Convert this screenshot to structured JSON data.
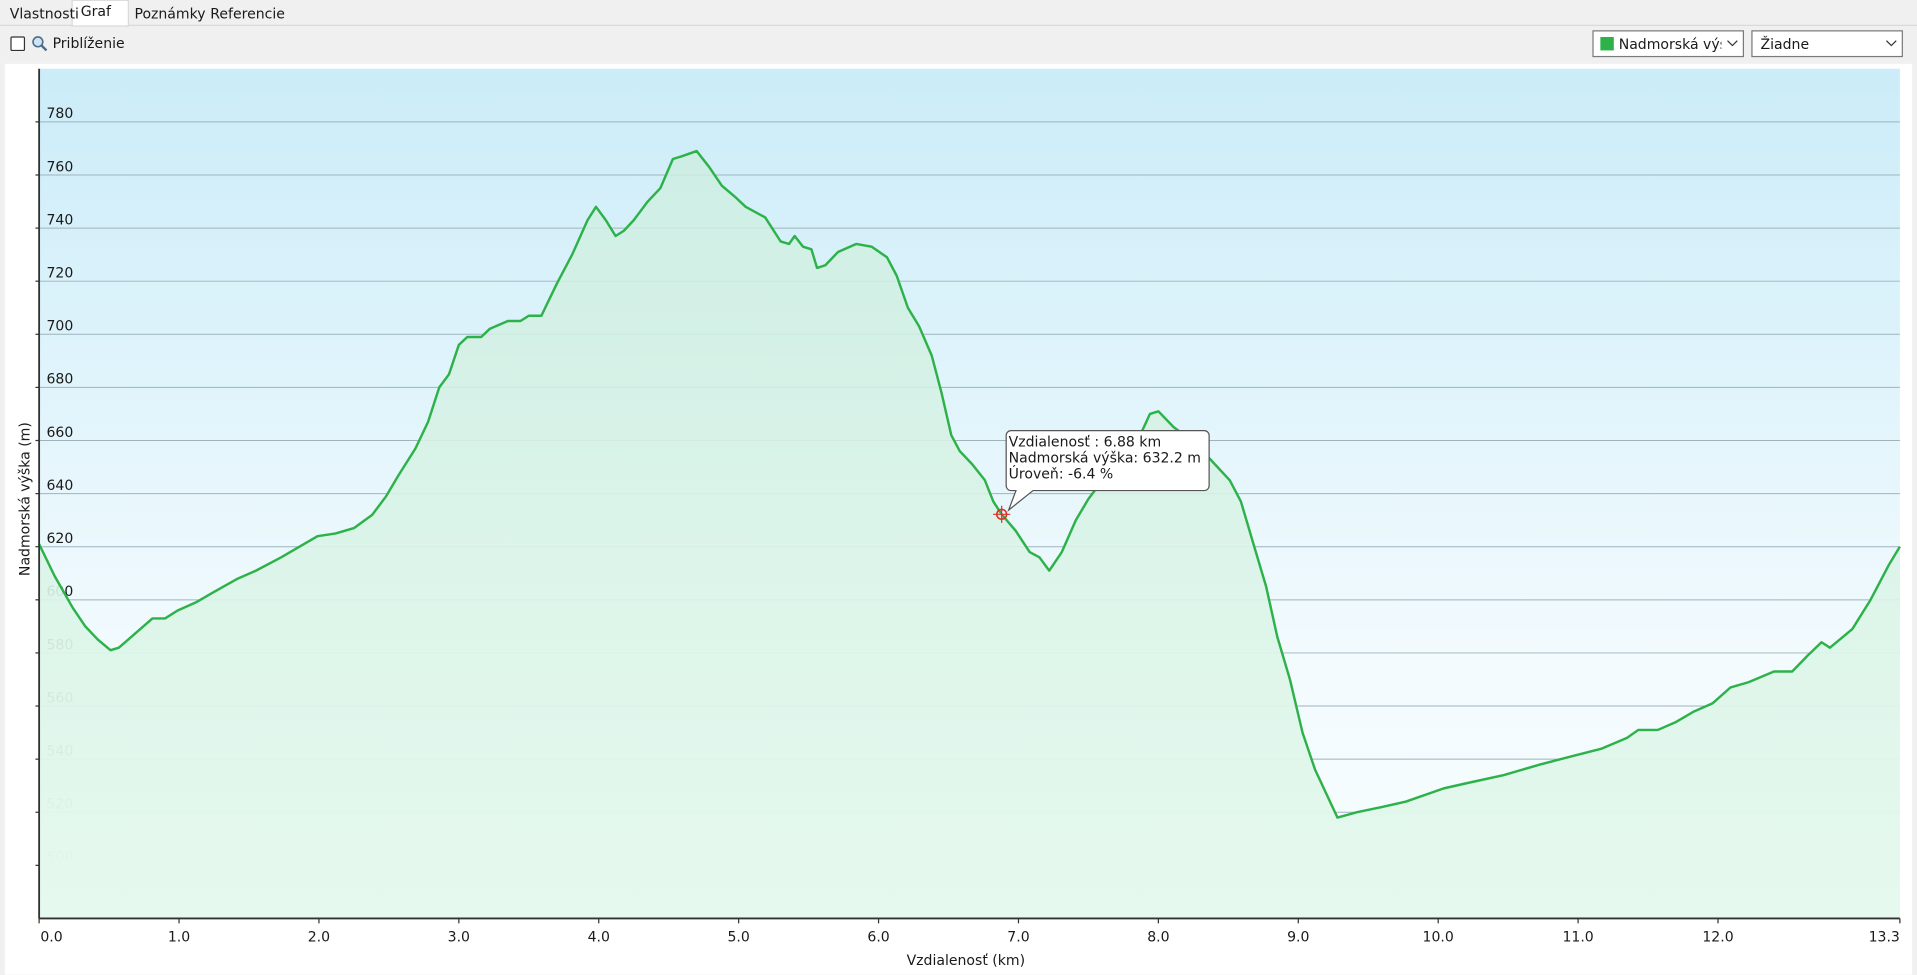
{
  "tabs": [
    "Vlastnosti",
    "Graf",
    "Poznámky",
    "Referencie"
  ],
  "toolbar": {
    "zoom_label": "Priblíženie",
    "secondary_select": "Žiadne"
  },
  "tooltip": {
    "lines": [
      "Vzdialenosť : 6.88 km",
      "Nadmorská výška: 632.2 m",
      "Úroveň: -6.4 %"
    ]
  },
  "chart_data": {
    "type": "line",
    "xlabel": "Vzdialenosť (km)",
    "ylabel": "Nadmorská výška (m)",
    "xlim": [
      0,
      13.3
    ],
    "ylim": [
      480,
      800
    ],
    "xticks": [
      {
        "value": 0,
        "label": "0.0"
      },
      {
        "value": 1,
        "label": "1.0"
      },
      {
        "value": 2,
        "label": "2.0"
      },
      {
        "value": 3,
        "label": "3.0"
      },
      {
        "value": 4,
        "label": "4.0"
      },
      {
        "value": 5,
        "label": "5.0"
      },
      {
        "value": 6,
        "label": "6.0"
      },
      {
        "value": 7,
        "label": "7.0"
      },
      {
        "value": 8,
        "label": "8.0"
      },
      {
        "value": 9,
        "label": "9.0"
      },
      {
        "value": 10,
        "label": "10.0"
      },
      {
        "value": 11,
        "label": "11.0"
      },
      {
        "value": 12,
        "label": "12.0"
      },
      13.3
    ],
    "yticks": [
      500,
      520,
      540,
      560,
      580,
      600,
      620,
      640,
      660,
      680,
      700,
      720,
      740,
      760,
      780
    ],
    "grid": true,
    "cursor": {
      "x": 6.88,
      "y": 632.2
    },
    "x": [
      0,
      0.11,
      0.24,
      0.33,
      0.42,
      0.51,
      0.57,
      0.68,
      0.81,
      0.9,
      0.99,
      1.12,
      1.25,
      1.42,
      1.55,
      1.73,
      1.99,
      2.12,
      2.25,
      2.38,
      2.48,
      2.57,
      2.69,
      2.78,
      2.86,
      2.93,
      3.0,
      3.06,
      3.16,
      3.22,
      3.35,
      3.44,
      3.5,
      3.59,
      3.7,
      3.81,
      3.92,
      3.98,
      4.05,
      4.12,
      4.18,
      4.25,
      4.35,
      4.44,
      4.53,
      4.59,
      4.7,
      4.79,
      4.88,
      4.97,
      5.05,
      5.19,
      5.3,
      5.36,
      5.4,
      5.46,
      5.52,
      5.56,
      5.62,
      5.71,
      5.84,
      5.95,
      6.06,
      6.13,
      6.21,
      6.29,
      6.38,
      6.45,
      6.52,
      6.58,
      6.67,
      6.76,
      6.82,
      6.88,
      6.98,
      7.08,
      7.15,
      7.22,
      7.31,
      7.41,
      7.5,
      7.63,
      7.76,
      7.87,
      7.94,
      8.0,
      8.11,
      8.24,
      8.37,
      8.51,
      8.59,
      8.68,
      8.77,
      8.85,
      8.94,
      9.03,
      9.12,
      9.2,
      9.28,
      9.42,
      9.6,
      9.77,
      10.04,
      10.21,
      10.47,
      10.73,
      10.95,
      11.17,
      11.35,
      11.43,
      11.57,
      11.7,
      11.83,
      11.96,
      12.09,
      12.22,
      12.4,
      12.53,
      12.64,
      12.74,
      12.8,
      12.96,
      13.09,
      13.22,
      13.3
    ],
    "series": [
      {
        "name": "Nadmorská výška",
        "color": "#2db24a",
        "values": [
          621,
          609,
          597,
          590,
          585,
          581,
          582,
          587,
          593,
          593,
          596,
          599,
          603,
          608,
          611,
          616,
          624,
          625,
          627,
          632,
          639,
          647,
          657,
          667,
          680,
          685,
          696,
          699,
          699,
          702,
          705,
          705,
          707,
          707,
          719,
          730,
          743,
          748,
          743,
          737,
          739,
          743,
          750,
          755,
          766,
          767,
          769,
          763,
          756,
          752,
          748,
          744,
          735,
          734,
          737,
          733,
          732,
          725,
          726,
          731,
          734,
          733,
          729,
          722,
          710,
          703,
          692,
          678,
          662,
          656,
          651,
          645,
          637,
          632.2,
          626,
          618,
          616,
          611,
          618,
          630,
          638,
          647,
          656,
          662,
          670,
          671,
          665,
          660,
          653,
          645,
          637,
          621,
          605,
          586,
          570,
          550,
          536,
          527,
          518,
          520,
          522,
          524,
          529,
          531,
          534,
          538,
          541,
          544,
          548,
          551,
          551,
          554,
          558,
          561,
          567,
          569,
          573,
          573,
          579,
          584,
          582,
          589,
          600,
          613,
          620
        ]
      }
    ]
  }
}
